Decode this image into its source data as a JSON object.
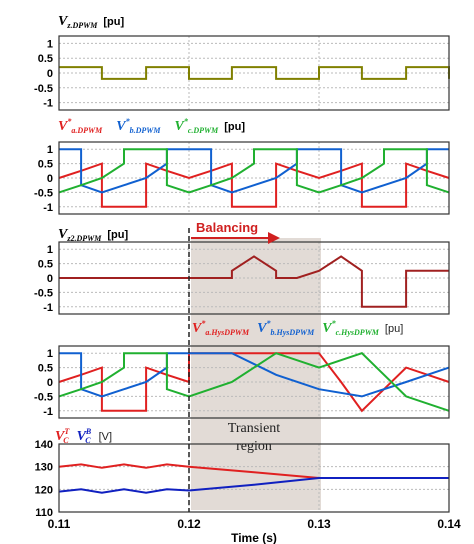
{
  "chart_data": [
    {
      "type": "line",
      "title_main": "V",
      "title_sub": "z.DPWM",
      "unit": "[pu]",
      "ylim": [
        -1.25,
        1.25
      ],
      "yticks": [
        "1",
        "0.5",
        "0",
        "-0.5",
        "-1"
      ],
      "series": [
        {
          "color": "#808000",
          "points": [
            [
              0.11,
              0.2
            ],
            [
              0.1133,
              0.2
            ],
            [
              0.1133,
              -0.2
            ],
            [
              0.1167,
              -0.2
            ],
            [
              0.1167,
              0.2
            ],
            [
              0.12,
              0.2
            ],
            [
              0.12,
              -0.2
            ],
            [
              0.1233,
              -0.2
            ],
            [
              0.1233,
              0.2
            ],
            [
              0.1267,
              0.2
            ],
            [
              0.1267,
              -0.2
            ],
            [
              0.13,
              -0.2
            ],
            [
              0.13,
              0.2
            ],
            [
              0.1333,
              0.2
            ],
            [
              0.1333,
              -0.2
            ],
            [
              0.1367,
              -0.2
            ],
            [
              0.1367,
              0.2
            ],
            [
              0.14,
              0.2
            ],
            [
              0.14,
              -0.2
            ]
          ]
        }
      ]
    },
    {
      "type": "line",
      "legend": [
        {
          "main": "V",
          "sup": "*",
          "sub": "a.DPWM",
          "color": "#e02020"
        },
        {
          "main": "V",
          "sup": "*",
          "sub": "b.DPWM",
          "color": "#1060d0"
        },
        {
          "main": "V",
          "sup": "*",
          "sub": "c.DPWM",
          "color": "#20b030"
        }
      ],
      "unit": "[pu]",
      "ylim": [
        -1.25,
        1.25
      ],
      "yticks": [
        "1",
        "0.5",
        "0",
        "-0.5",
        "-1"
      ],
      "series": [
        {
          "color": "#e02020",
          "points": [
            [
              0.11,
              0.0
            ],
            [
              0.1117,
              0.25
            ],
            [
              0.1133,
              0.5
            ],
            [
              0.1133,
              -1
            ],
            [
              0.1167,
              -1
            ],
            [
              0.1167,
              0.5
            ],
            [
              0.1183,
              0.25
            ],
            [
              0.12,
              0.0
            ],
            [
              0.1217,
              0.25
            ],
            [
              0.1233,
              0.5
            ],
            [
              0.1233,
              -1
            ],
            [
              0.1267,
              -1
            ],
            [
              0.1267,
              0.5
            ],
            [
              0.1283,
              0.25
            ],
            [
              0.13,
              0.0
            ],
            [
              0.1317,
              0.25
            ],
            [
              0.1333,
              0.5
            ],
            [
              0.1333,
              -1
            ],
            [
              0.1367,
              -1
            ],
            [
              0.1367,
              0.5
            ],
            [
              0.1383,
              0.25
            ],
            [
              0.14,
              0.0
            ]
          ]
        },
        {
          "color": "#1060d0",
          "points": [
            [
              0.11,
              1
            ],
            [
              0.1117,
              1
            ],
            [
              0.1117,
              -0.25
            ],
            [
              0.1133,
              -0.5
            ],
            [
              0.115,
              -0.25
            ],
            [
              0.1167,
              0.0
            ],
            [
              0.1183,
              0.5
            ],
            [
              0.1183,
              1
            ],
            [
              0.1217,
              1
            ],
            [
              0.1217,
              -0.25
            ],
            [
              0.1233,
              -0.5
            ],
            [
              0.125,
              -0.25
            ],
            [
              0.1267,
              0.0
            ],
            [
              0.1283,
              0.5
            ],
            [
              0.1283,
              1
            ],
            [
              0.1317,
              1
            ],
            [
              0.1317,
              -0.25
            ],
            [
              0.1333,
              -0.5
            ],
            [
              0.135,
              -0.25
            ],
            [
              0.1367,
              0.0
            ],
            [
              0.1383,
              0.5
            ],
            [
              0.1383,
              1
            ],
            [
              0.14,
              1
            ]
          ]
        },
        {
          "color": "#20b030",
          "points": [
            [
              0.11,
              -0.5
            ],
            [
              0.1117,
              -0.25
            ],
            [
              0.1133,
              0.0
            ],
            [
              0.115,
              0.5
            ],
            [
              0.115,
              1
            ],
            [
              0.1183,
              1
            ],
            [
              0.1183,
              -0.25
            ],
            [
              0.12,
              -0.5
            ],
            [
              0.1217,
              -0.25
            ],
            [
              0.1233,
              0.0
            ],
            [
              0.125,
              0.5
            ],
            [
              0.125,
              1
            ],
            [
              0.1283,
              1
            ],
            [
              0.1283,
              -0.25
            ],
            [
              0.13,
              -0.5
            ],
            [
              0.1317,
              -0.25
            ],
            [
              0.1333,
              0.0
            ],
            [
              0.135,
              0.5
            ],
            [
              0.135,
              1
            ],
            [
              0.1383,
              1
            ],
            [
              0.1383,
              -0.25
            ],
            [
              0.14,
              -0.5
            ]
          ]
        }
      ]
    },
    {
      "type": "line",
      "title_main": "V",
      "title_sub": "z2.DPWM",
      "unit": "[pu]",
      "ylim": [
        -1.25,
        1.25
      ],
      "yticks": [
        "1",
        "0.5",
        "0",
        "-0.5",
        "-1"
      ],
      "annotation": "Balancing",
      "series": [
        {
          "color": "#a02020",
          "points": [
            [
              0.11,
              0
            ],
            [
              0.1233,
              0
            ],
            [
              0.1233,
              0.25
            ],
            [
              0.125,
              0.75
            ],
            [
              0.1267,
              0.25
            ],
            [
              0.1267,
              0
            ],
            [
              0.1283,
              0
            ],
            [
              0.13,
              0.25
            ],
            [
              0.1317,
              0.75
            ],
            [
              0.1333,
              0.25
            ],
            [
              0.1333,
              -1
            ],
            [
              0.1367,
              -1
            ],
            [
              0.1367,
              0.25
            ],
            [
              0.14,
              0.25
            ]
          ]
        }
      ]
    },
    {
      "type": "line",
      "legend": [
        {
          "main": "V",
          "sup": "*",
          "sub": "a.HysDPWM",
          "color": "#e02020"
        },
        {
          "main": "V",
          "sup": "*",
          "sub": "b.HysDPWM",
          "color": "#1060d0"
        },
        {
          "main": "V",
          "sup": "*",
          "sub": "c.HysDPWM",
          "color": "#20b030"
        }
      ],
      "unit": "[pu]",
      "ylim": [
        -1.25,
        1.25
      ],
      "yticks": [
        "1",
        "0.5",
        "0",
        "-0.5",
        "-1"
      ],
      "series": [
        {
          "color": "#e02020",
          "points": [
            [
              0.11,
              0.0
            ],
            [
              0.1117,
              0.25
            ],
            [
              0.1133,
              0.5
            ],
            [
              0.1133,
              -1
            ],
            [
              0.1167,
              -1
            ],
            [
              0.1167,
              0.5
            ],
            [
              0.1183,
              0.25
            ],
            [
              0.12,
              0.0
            ],
            [
              0.12,
              1
            ],
            [
              0.13,
              1
            ],
            [
              0.1317,
              0.0
            ],
            [
              0.1333,
              -1
            ],
            [
              0.1367,
              0.5
            ],
            [
              0.14,
              0.0
            ]
          ]
        },
        {
          "color": "#1060d0",
          "points": [
            [
              0.11,
              1
            ],
            [
              0.1117,
              1
            ],
            [
              0.1117,
              -0.25
            ],
            [
              0.1133,
              -0.5
            ],
            [
              0.115,
              -0.25
            ],
            [
              0.1167,
              0.0
            ],
            [
              0.1183,
              0.5
            ],
            [
              0.1183,
              1
            ],
            [
              0.12,
              1
            ],
            [
              0.1233,
              1
            ],
            [
              0.1267,
              0.25
            ],
            [
              0.13,
              -0.25
            ],
            [
              0.1333,
              -0.5
            ],
            [
              0.1367,
              0.0
            ],
            [
              0.14,
              0.5
            ]
          ]
        },
        {
          "color": "#20b030",
          "points": [
            [
              0.11,
              -0.5
            ],
            [
              0.1117,
              -0.25
            ],
            [
              0.1133,
              0.0
            ],
            [
              0.115,
              0.5
            ],
            [
              0.115,
              1
            ],
            [
              0.1183,
              1
            ],
            [
              0.1183,
              -0.25
            ],
            [
              0.12,
              -0.5
            ],
            [
              0.1233,
              0.0
            ],
            [
              0.1267,
              1
            ],
            [
              0.13,
              0.5
            ],
            [
              0.1333,
              1
            ],
            [
              0.1367,
              -0.5
            ],
            [
              0.14,
              -1
            ]
          ]
        }
      ]
    },
    {
      "type": "line",
      "legend": [
        {
          "main": "V",
          "sup": "T",
          "sub": "C",
          "color": "#e02020"
        },
        {
          "main": "V",
          "sup": "B",
          "sub": "C",
          "color": "#1020c0"
        }
      ],
      "unit": "[V]",
      "ylim": [
        110,
        140
      ],
      "yticks": [
        "140",
        "130",
        "120",
        "110"
      ],
      "xlabel": "Time (s)",
      "xticks": [
        "0.11",
        "0.12",
        "0.13",
        "0.14"
      ],
      "annotation": "Transient\nregion",
      "series": [
        {
          "color": "#e02020",
          "points": [
            [
              0.11,
              130
            ],
            [
              0.1117,
              131
            ],
            [
              0.1133,
              129.5
            ],
            [
              0.115,
              131
            ],
            [
              0.1167,
              129.5
            ],
            [
              0.1183,
              131
            ],
            [
              0.12,
              130
            ],
            [
              0.125,
              127.5
            ],
            [
              0.13,
              125
            ],
            [
              0.14,
              125
            ]
          ]
        },
        {
          "color": "#1020c0",
          "points": [
            [
              0.11,
              119
            ],
            [
              0.1117,
              120
            ],
            [
              0.1133,
              118.5
            ],
            [
              0.115,
              120
            ],
            [
              0.1167,
              118.5
            ],
            [
              0.1183,
              120
            ],
            [
              0.12,
              119.5
            ],
            [
              0.125,
              122
            ],
            [
              0.13,
              125
            ],
            [
              0.14,
              125
            ]
          ]
        }
      ]
    }
  ]
}
